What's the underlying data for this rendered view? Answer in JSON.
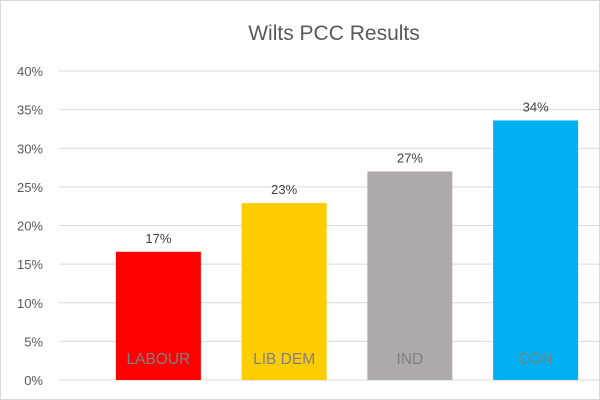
{
  "chart_data": {
    "type": "bar",
    "title": "Wilts PCC Results",
    "categories": [
      "LABOUR",
      "LIB DEM",
      "IND",
      "CON"
    ],
    "values": [
      16.6,
      22.9,
      27.0,
      33.6
    ],
    "data_labels": [
      "17%",
      "23%",
      "27%",
      "34%"
    ],
    "colors": [
      "#ff0000",
      "#ffcc00",
      "#aeaaaa",
      "#00b0f0"
    ],
    "ylim": [
      0,
      40
    ],
    "yticks": [
      "0%",
      "5%",
      "10%",
      "15%",
      "20%",
      "25%",
      "30%",
      "35%",
      "40%"
    ],
    "grid": true,
    "legend": "none",
    "category_label_position": "inside-bar-bottom"
  }
}
